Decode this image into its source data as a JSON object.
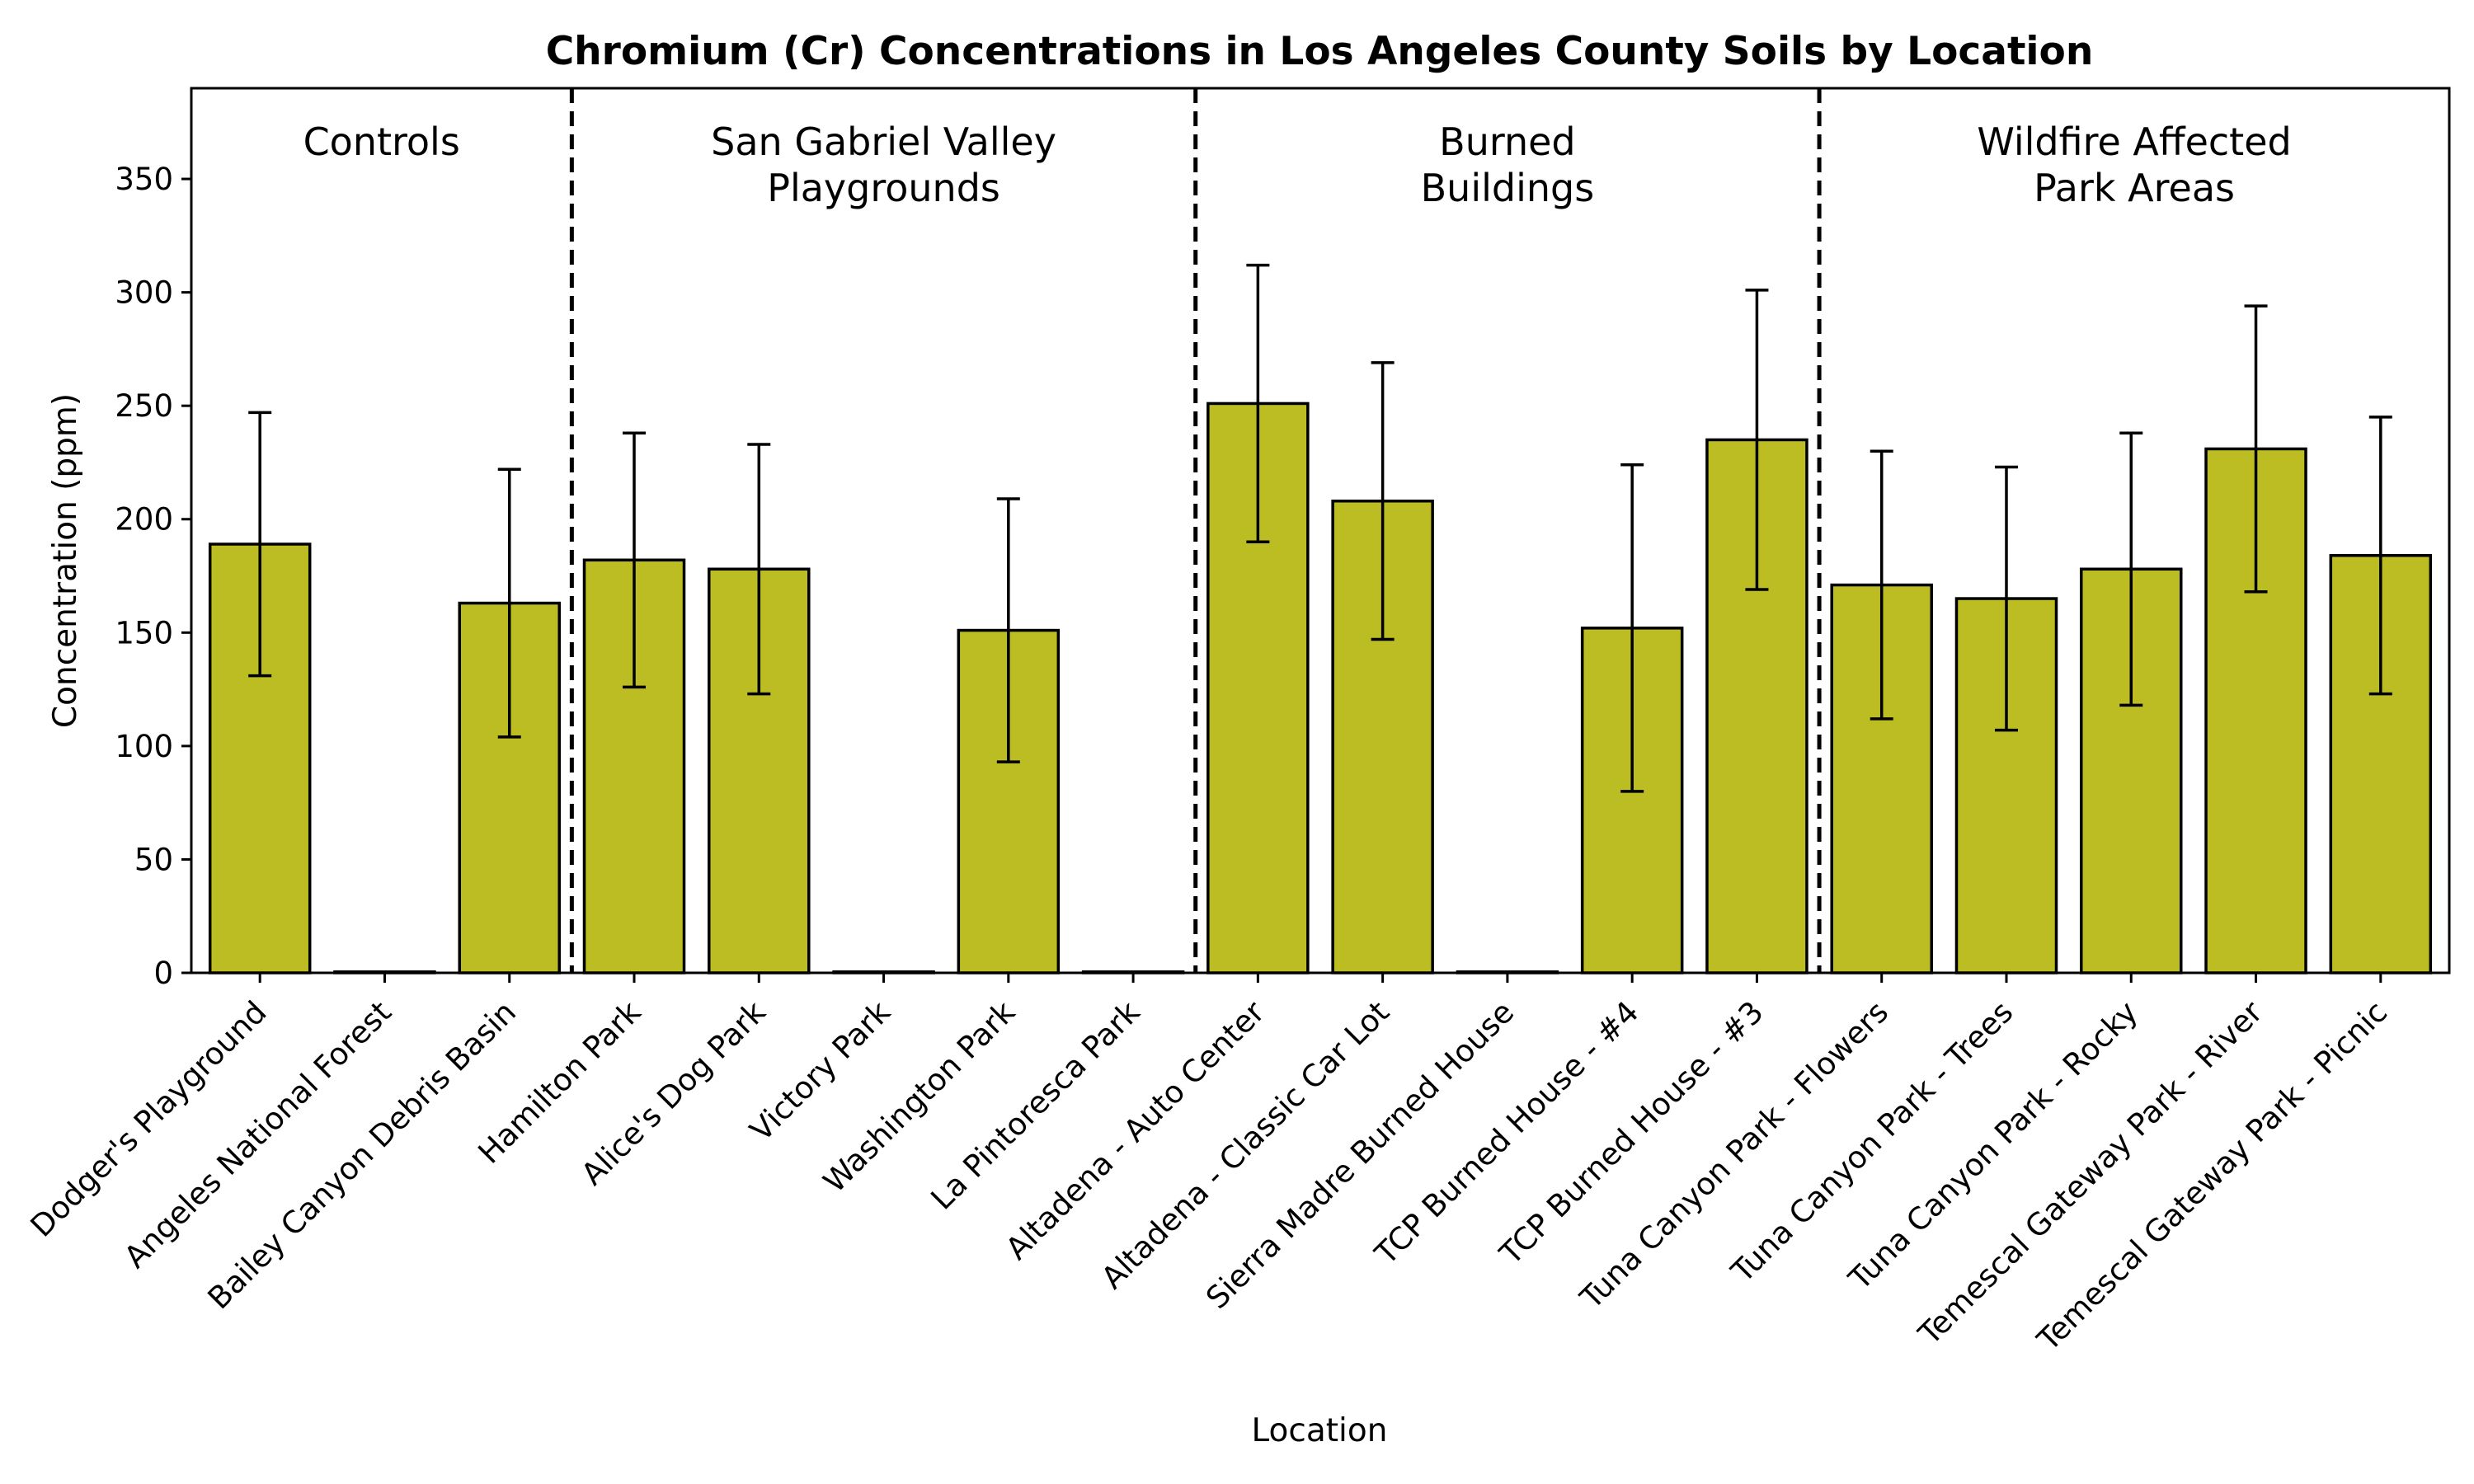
{
  "chart_data": {
    "type": "bar",
    "title": "Chromium (Cr) Concentrations in Los Angeles County Soils by Location",
    "xlabel": "Location",
    "ylabel": "Concentration (ppm)",
    "ylim": [
      0,
      390
    ],
    "yticks": [
      "0",
      "50",
      "100",
      "150",
      "200",
      "250",
      "300",
      "350"
    ],
    "grid": false,
    "bar_color": "#bcbd22",
    "categories": [
      "Dodger's Playground",
      "Angeles National Forest",
      "Bailey Canyon Debris Basin",
      "Hamilton Park",
      "Alice's Dog Park",
      "Victory Park",
      "Washington Park",
      "La Pintoresca Park",
      "Altadena - Auto Center",
      "Altadena - Classic Car Lot",
      "Sierra Madre Burned House",
      "TCP Burned House - #4",
      "TCP Burned House - #3",
      "Tuna Canyon Park - Flowers",
      "Tuna Canyon Park - Trees",
      "Tuna Canyon Park - Rocky",
      "Temescal Gateway Park - River",
      "Temescal Gateway Park - Picnic"
    ],
    "values": [
      189,
      0,
      163,
      182,
      178,
      0,
      151,
      0,
      251,
      208,
      0,
      152,
      235,
      171,
      165,
      178,
      231,
      184
    ],
    "error": [
      58,
      0,
      59,
      56,
      55,
      0,
      58,
      0,
      61,
      61,
      0,
      72,
      66,
      59,
      58,
      60,
      63,
      61
    ],
    "groups": [
      {
        "label_lines": [
          "Controls"
        ],
        "start": 0,
        "end": 2
      },
      {
        "label_lines": [
          "San Gabriel Valley",
          "Playgrounds"
        ],
        "start": 3,
        "end": 7
      },
      {
        "label_lines": [
          "Burned",
          "Buildings"
        ],
        "start": 8,
        "end": 12
      },
      {
        "label_lines": [
          "Wildfire Affected",
          "Park Areas"
        ],
        "start": 13,
        "end": 17
      }
    ]
  }
}
